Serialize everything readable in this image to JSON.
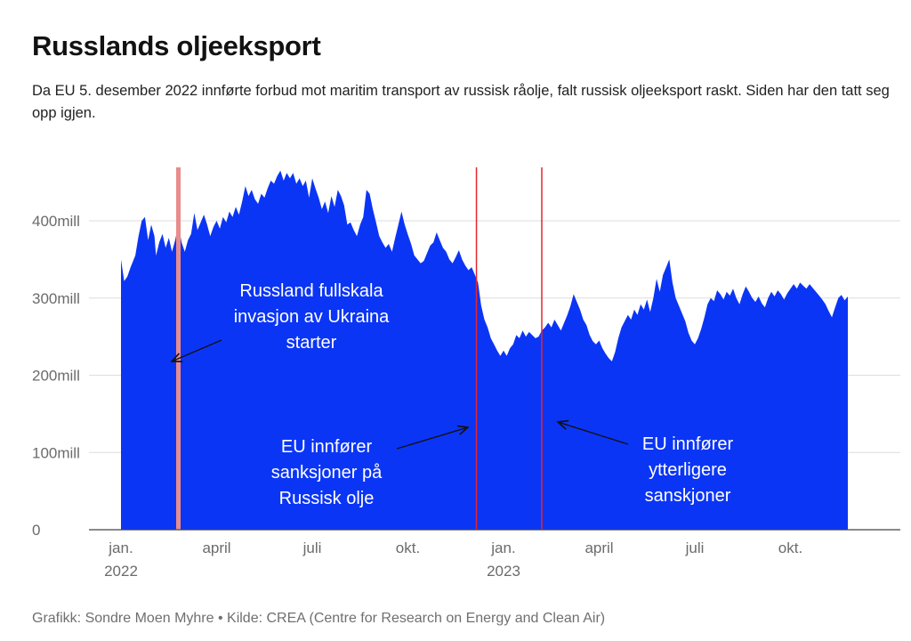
{
  "header": {
    "title": "Russlands oljeeksport",
    "subtitle": "Da EU 5. desember 2022 innførte forbud mot maritim transport av russisk råolje, falt russisk oljeeksport raskt. Siden har den tatt seg opp igjen."
  },
  "footer": {
    "source": "Grafikk: Sondre Moen Myhre • Kilde: CREA (Centre for Research on Energy and Clean Air)"
  },
  "chart_data": {
    "type": "area",
    "title": "Russlands oljeeksport",
    "xlabel": "",
    "ylabel": "",
    "x_range_months": [
      0,
      24
    ],
    "ylim": [
      0,
      470
    ],
    "grid": true,
    "colors": {
      "area": "#0b35f5",
      "event_line": "#e3262f",
      "invasion_line": "#e98c8c",
      "gridline": "#dedede",
      "axis": "#444444"
    },
    "y_ticks": [
      {
        "value": 0,
        "label": "0"
      },
      {
        "value": 100,
        "label": "100mill"
      },
      {
        "value": 200,
        "label": "200mill"
      },
      {
        "value": 300,
        "label": "300mill"
      },
      {
        "value": 400,
        "label": "400mill"
      }
    ],
    "x_ticks": [
      {
        "month": 0,
        "label": "jan.",
        "year": "2022"
      },
      {
        "month": 3,
        "label": "april",
        "year": ""
      },
      {
        "month": 6,
        "label": "juli",
        "year": ""
      },
      {
        "month": 9,
        "label": "okt.",
        "year": ""
      },
      {
        "month": 12,
        "label": "jan.",
        "year": "2023"
      },
      {
        "month": 15,
        "label": "april",
        "year": ""
      },
      {
        "month": 18,
        "label": "juli",
        "year": ""
      },
      {
        "month": 21,
        "label": "okt.",
        "year": ""
      }
    ],
    "series": [
      {
        "name": "Russlands oljeeksport",
        "unit": "mill",
        "points": [
          [
            0.0,
            350
          ],
          [
            0.1,
            322
          ],
          [
            0.2,
            328
          ],
          [
            0.3,
            340
          ],
          [
            0.45,
            355
          ],
          [
            0.55,
            380
          ],
          [
            0.65,
            400
          ],
          [
            0.75,
            405
          ],
          [
            0.85,
            375
          ],
          [
            0.95,
            395
          ],
          [
            1.05,
            380
          ],
          [
            1.1,
            355
          ],
          [
            1.2,
            372
          ],
          [
            1.3,
            383
          ],
          [
            1.4,
            365
          ],
          [
            1.5,
            378
          ],
          [
            1.6,
            360
          ],
          [
            1.7,
            375
          ],
          [
            1.8,
            395
          ],
          [
            1.9,
            372
          ],
          [
            2.0,
            360
          ],
          [
            2.1,
            375
          ],
          [
            2.2,
            383
          ],
          [
            2.3,
            410
          ],
          [
            2.4,
            388
          ],
          [
            2.5,
            398
          ],
          [
            2.6,
            408
          ],
          [
            2.7,
            395
          ],
          [
            2.8,
            380
          ],
          [
            2.9,
            392
          ],
          [
            3.0,
            400
          ],
          [
            3.1,
            390
          ],
          [
            3.2,
            405
          ],
          [
            3.3,
            398
          ],
          [
            3.4,
            412
          ],
          [
            3.5,
            405
          ],
          [
            3.6,
            418
          ],
          [
            3.7,
            408
          ],
          [
            3.8,
            425
          ],
          [
            3.9,
            445
          ],
          [
            4.0,
            432
          ],
          [
            4.1,
            440
          ],
          [
            4.2,
            428
          ],
          [
            4.3,
            422
          ],
          [
            4.4,
            435
          ],
          [
            4.5,
            430
          ],
          [
            4.6,
            442
          ],
          [
            4.7,
            452
          ],
          [
            4.8,
            448
          ],
          [
            4.9,
            458
          ],
          [
            5.0,
            465
          ],
          [
            5.1,
            452
          ],
          [
            5.2,
            462
          ],
          [
            5.3,
            455
          ],
          [
            5.4,
            462
          ],
          [
            5.5,
            448
          ],
          [
            5.6,
            455
          ],
          [
            5.7,
            445
          ],
          [
            5.8,
            452
          ],
          [
            5.9,
            430
          ],
          [
            6.0,
            455
          ],
          [
            6.1,
            442
          ],
          [
            6.2,
            430
          ],
          [
            6.3,
            415
          ],
          [
            6.4,
            425
          ],
          [
            6.5,
            410
          ],
          [
            6.6,
            432
          ],
          [
            6.7,
            418
          ],
          [
            6.8,
            440
          ],
          [
            6.9,
            432
          ],
          [
            7.0,
            420
          ],
          [
            7.1,
            395
          ],
          [
            7.2,
            398
          ],
          [
            7.3,
            388
          ],
          [
            7.4,
            380
          ],
          [
            7.5,
            395
          ],
          [
            7.6,
            405
          ],
          [
            7.7,
            440
          ],
          [
            7.8,
            435
          ],
          [
            7.9,
            415
          ],
          [
            8.0,
            398
          ],
          [
            8.1,
            380
          ],
          [
            8.2,
            372
          ],
          [
            8.3,
            365
          ],
          [
            8.4,
            370
          ],
          [
            8.5,
            360
          ],
          [
            8.6,
            378
          ],
          [
            8.7,
            395
          ],
          [
            8.8,
            412
          ],
          [
            8.9,
            395
          ],
          [
            9.0,
            382
          ],
          [
            9.1,
            370
          ],
          [
            9.2,
            355
          ],
          [
            9.3,
            350
          ],
          [
            9.4,
            345
          ],
          [
            9.5,
            348
          ],
          [
            9.6,
            358
          ],
          [
            9.7,
            368
          ],
          [
            9.8,
            372
          ],
          [
            9.9,
            385
          ],
          [
            10.0,
            375
          ],
          [
            10.1,
            365
          ],
          [
            10.2,
            360
          ],
          [
            10.3,
            350
          ],
          [
            10.4,
            345
          ],
          [
            10.5,
            353
          ],
          [
            10.6,
            362
          ],
          [
            10.7,
            350
          ],
          [
            10.8,
            342
          ],
          [
            10.9,
            336
          ],
          [
            11.0,
            340
          ],
          [
            11.1,
            330
          ],
          [
            11.2,
            320
          ],
          [
            11.3,
            290
          ],
          [
            11.4,
            272
          ],
          [
            11.5,
            262
          ],
          [
            11.6,
            248
          ],
          [
            11.7,
            240
          ],
          [
            11.8,
            232
          ],
          [
            11.9,
            225
          ],
          [
            12.0,
            232
          ],
          [
            12.1,
            225
          ],
          [
            12.2,
            235
          ],
          [
            12.3,
            240
          ],
          [
            12.4,
            252
          ],
          [
            12.5,
            248
          ],
          [
            12.6,
            258
          ],
          [
            12.7,
            250
          ],
          [
            12.8,
            256
          ],
          [
            12.9,
            252
          ],
          [
            13.0,
            248
          ],
          [
            13.1,
            250
          ],
          [
            13.2,
            258
          ],
          [
            13.3,
            262
          ],
          [
            13.4,
            268
          ],
          [
            13.5,
            262
          ],
          [
            13.6,
            272
          ],
          [
            13.7,
            265
          ],
          [
            13.8,
            258
          ],
          [
            13.9,
            268
          ],
          [
            14.0,
            278
          ],
          [
            14.1,
            290
          ],
          [
            14.2,
            305
          ],
          [
            14.3,
            295
          ],
          [
            14.4,
            285
          ],
          [
            14.5,
            272
          ],
          [
            14.6,
            265
          ],
          [
            14.7,
            252
          ],
          [
            14.8,
            244
          ],
          [
            14.9,
            240
          ],
          [
            15.0,
            245
          ],
          [
            15.1,
            235
          ],
          [
            15.2,
            228
          ],
          [
            15.3,
            222
          ],
          [
            15.4,
            218
          ],
          [
            15.5,
            230
          ],
          [
            15.6,
            248
          ],
          [
            15.7,
            262
          ],
          [
            15.8,
            270
          ],
          [
            15.9,
            278
          ],
          [
            16.0,
            272
          ],
          [
            16.1,
            285
          ],
          [
            16.2,
            278
          ],
          [
            16.3,
            292
          ],
          [
            16.4,
            285
          ],
          [
            16.5,
            298
          ],
          [
            16.6,
            282
          ],
          [
            16.7,
            300
          ],
          [
            16.8,
            325
          ],
          [
            16.9,
            308
          ],
          [
            17.0,
            330
          ],
          [
            17.1,
            340
          ],
          [
            17.2,
            350
          ],
          [
            17.3,
            320
          ],
          [
            17.4,
            300
          ],
          [
            17.5,
            290
          ],
          [
            17.6,
            280
          ],
          [
            17.7,
            270
          ],
          [
            17.8,
            255
          ],
          [
            17.9,
            245
          ],
          [
            18.0,
            240
          ],
          [
            18.1,
            248
          ],
          [
            18.2,
            260
          ],
          [
            18.3,
            275
          ],
          [
            18.4,
            292
          ],
          [
            18.5,
            300
          ],
          [
            18.6,
            296
          ],
          [
            18.7,
            310
          ],
          [
            18.8,
            305
          ],
          [
            18.9,
            298
          ],
          [
            19.0,
            308
          ],
          [
            19.1,
            303
          ],
          [
            19.2,
            312
          ],
          [
            19.3,
            300
          ],
          [
            19.4,
            292
          ],
          [
            19.5,
            305
          ],
          [
            19.6,
            315
          ],
          [
            19.7,
            308
          ],
          [
            19.8,
            300
          ],
          [
            19.9,
            295
          ],
          [
            20.0,
            302
          ],
          [
            20.1,
            293
          ],
          [
            20.2,
            288
          ],
          [
            20.3,
            300
          ],
          [
            20.4,
            308
          ],
          [
            20.5,
            302
          ],
          [
            20.6,
            310
          ],
          [
            20.7,
            305
          ],
          [
            20.8,
            298
          ],
          [
            20.9,
            306
          ],
          [
            21.0,
            312
          ],
          [
            21.1,
            318
          ],
          [
            21.2,
            312
          ],
          [
            21.3,
            320
          ],
          [
            21.4,
            316
          ],
          [
            21.5,
            312
          ],
          [
            21.6,
            318
          ],
          [
            21.7,
            313
          ],
          [
            21.8,
            308
          ],
          [
            21.9,
            303
          ],
          [
            22.0,
            298
          ],
          [
            22.1,
            292
          ],
          [
            22.2,
            283
          ],
          [
            22.3,
            275
          ],
          [
            22.4,
            288
          ],
          [
            22.5,
            300
          ],
          [
            22.6,
            304
          ],
          [
            22.7,
            297
          ],
          [
            22.8,
            302
          ]
        ]
      }
    ],
    "events": [
      {
        "id": "invasion",
        "month": 1.8
      },
      {
        "id": "sanctions-1",
        "month": 11.15
      },
      {
        "id": "sanctions-2",
        "month": 13.2
      }
    ],
    "annotations": [
      {
        "id": "invasion-note",
        "lines": [
          "Russland fullskala",
          "invasjon av Ukraina",
          "starter"
        ]
      },
      {
        "id": "sanctions-1-note",
        "lines": [
          "EU innfører",
          "sanksjoner på",
          "Russisk olje"
        ]
      },
      {
        "id": "sanctions-2-note",
        "lines": [
          "EU innfører",
          "ytterligere",
          "sanskjoner"
        ]
      }
    ]
  }
}
